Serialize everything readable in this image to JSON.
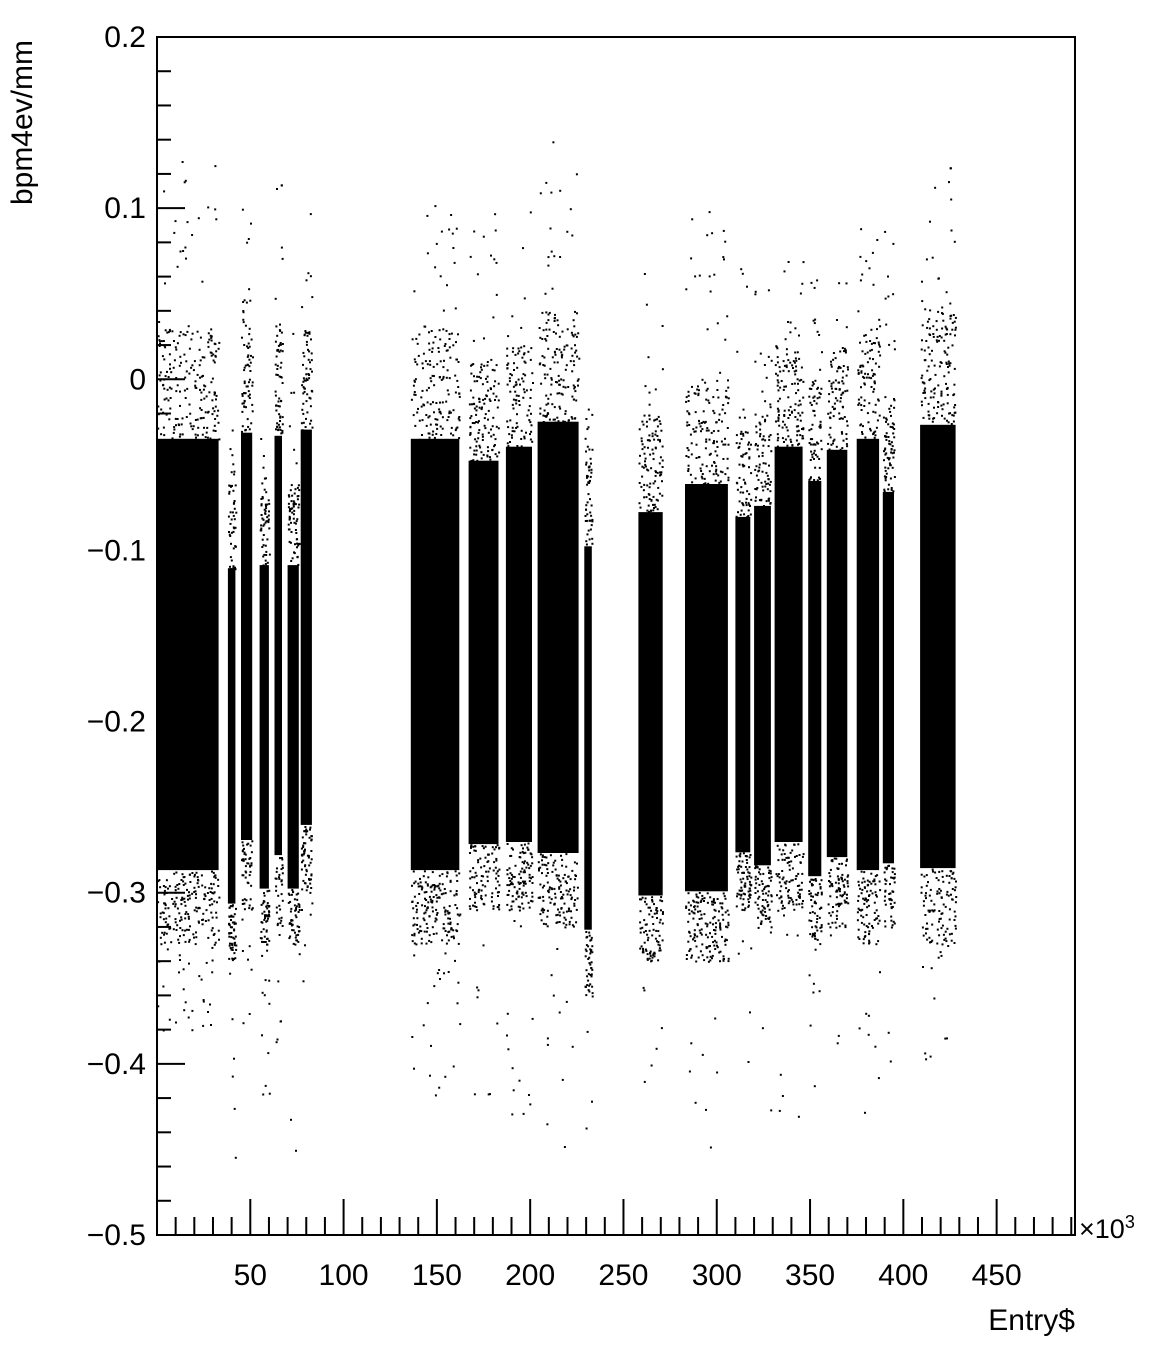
{
  "chart_data": {
    "type": "scatter",
    "title": "",
    "xlabel": "Entry$",
    "ylabel": "bpm4ev/mm",
    "x_multiplier": "×10",
    "x_multiplier_exp": "3",
    "xlim": [
      0,
      492
    ],
    "ylim": [
      -0.5,
      0.2
    ],
    "x_ticks": [
      50,
      100,
      150,
      200,
      250,
      300,
      350,
      400,
      450
    ],
    "x_tick_labels": [
      "50",
      "100",
      "150",
      "200",
      "250",
      "300",
      "350",
      "400",
      "450"
    ],
    "y_ticks": [
      -0.5,
      -0.4,
      -0.3,
      -0.2,
      -0.1,
      0,
      0.1,
      0.2
    ],
    "y_tick_labels": [
      "−0.5",
      "−0.4",
      "−0.3",
      "−0.2",
      "−0.1",
      "0",
      "0.1",
      "0.2"
    ],
    "grid": false,
    "legend": "none",
    "marker_color": "#000000",
    "series": [
      {
        "values_note_free": true,
        "runs": [
          {
            "x_range": [
              0,
              33
            ],
            "core": [
              -0.33,
              0.03
            ],
            "tail": [
              -0.38,
              0.13
            ]
          },
          {
            "x_range": [
              38,
              42
            ],
            "core": [
              -0.34,
              -0.06
            ],
            "tail": [
              -0.47,
              -0.02
            ]
          },
          {
            "x_range": [
              45,
              51
            ],
            "core": [
              -0.31,
              0.03
            ],
            "tail": [
              -0.41,
              0.1
            ]
          },
          {
            "x_range": [
              55,
              60
            ],
            "core": [
              -0.33,
              -0.06
            ],
            "tail": [
              -0.42,
              -0.03
            ]
          },
          {
            "x_range": [
              63,
              67
            ],
            "core": [
              -0.32,
              0.03
            ],
            "tail": [
              -0.39,
              0.12
            ]
          },
          {
            "x_range": [
              70,
              76
            ],
            "core": [
              -0.33,
              -0.06
            ],
            "tail": [
              -0.47,
              0.03
            ]
          },
          {
            "x_range": [
              77,
              83
            ],
            "core": [
              -0.3,
              0.03
            ],
            "tail": [
              -0.38,
              0.12
            ]
          },
          {
            "x_range": [
              136,
              162
            ],
            "core": [
              -0.33,
              0.03
            ],
            "tail": [
              -0.42,
              0.11
            ]
          },
          {
            "x_range": [
              167,
              183
            ],
            "core": [
              -0.31,
              0.01
            ],
            "tail": [
              -0.42,
              0.1
            ]
          },
          {
            "x_range": [
              187,
              201
            ],
            "core": [
              -0.31,
              0.02
            ],
            "tail": [
              -0.44,
              0.1
            ]
          },
          {
            "x_range": [
              204,
              226
            ],
            "core": [
              -0.32,
              0.04
            ],
            "tail": [
              -0.46,
              0.14
            ]
          },
          {
            "x_range": [
              229,
              233
            ],
            "core": [
              -0.36,
              -0.04
            ],
            "tail": [
              -0.46,
              -0.01
            ]
          },
          {
            "x_range": [
              258,
              271
            ],
            "core": [
              -0.34,
              -0.02
            ],
            "tail": [
              -0.42,
              0.08
            ]
          },
          {
            "x_range": [
              283,
              306
            ],
            "core": [
              -0.34,
              0.0
            ],
            "tail": [
              -0.46,
              0.1
            ]
          },
          {
            "x_range": [
              310,
              318
            ],
            "core": [
              -0.31,
              -0.03
            ],
            "tail": [
              -0.42,
              0.07
            ]
          },
          {
            "x_range": [
              320,
              329
            ],
            "core": [
              -0.32,
              -0.02
            ],
            "tail": [
              -0.44,
              0.06
            ]
          },
          {
            "x_range": [
              331,
              346
            ],
            "core": [
              -0.31,
              0.02
            ],
            "tail": [
              -0.44,
              0.07
            ]
          },
          {
            "x_range": [
              349,
              356
            ],
            "core": [
              -0.33,
              0.0
            ],
            "tail": [
              -0.43,
              0.06
            ]
          },
          {
            "x_range": [
              359,
              370
            ],
            "core": [
              -0.32,
              0.02
            ],
            "tail": [
              -0.42,
              0.11
            ]
          },
          {
            "x_range": [
              375,
              387
            ],
            "core": [
              -0.33,
              0.03
            ],
            "tail": [
              -0.44,
              0.09
            ]
          },
          {
            "x_range": [
              389,
              395
            ],
            "core": [
              -0.32,
              -0.01
            ],
            "tail": [
              -0.4,
              0.09
            ]
          },
          {
            "x_range": [
              409,
              428
            ],
            "core": [
              -0.33,
              0.04
            ],
            "tail": [
              -0.4,
              0.13
            ]
          }
        ]
      }
    ]
  }
}
